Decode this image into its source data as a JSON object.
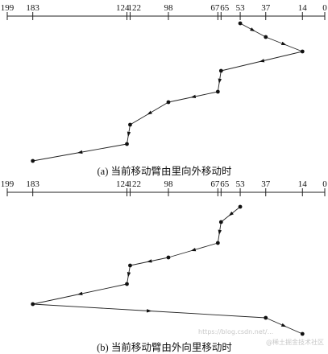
{
  "axis_labels": [
    199,
    183,
    124,
    122,
    98,
    67,
    65,
    53,
    37,
    14,
    0
  ],
  "axis_min": 0,
  "axis_max": 199,
  "panels": [
    {
      "id": "a",
      "caption": "(a) 当前移动臂由里向外移动时",
      "sequence": [
        53,
        37,
        14,
        65,
        67,
        98,
        122,
        124,
        183
      ]
    },
    {
      "id": "b",
      "caption": "(b) 当前移动臂由外向里移动时",
      "sequence": [
        53,
        65,
        67,
        98,
        122,
        124,
        183,
        37,
        14
      ]
    }
  ],
  "watermark": "@稀土掘金技术社区",
  "watermark_faint": "https://blog.csdn.net/..."
}
